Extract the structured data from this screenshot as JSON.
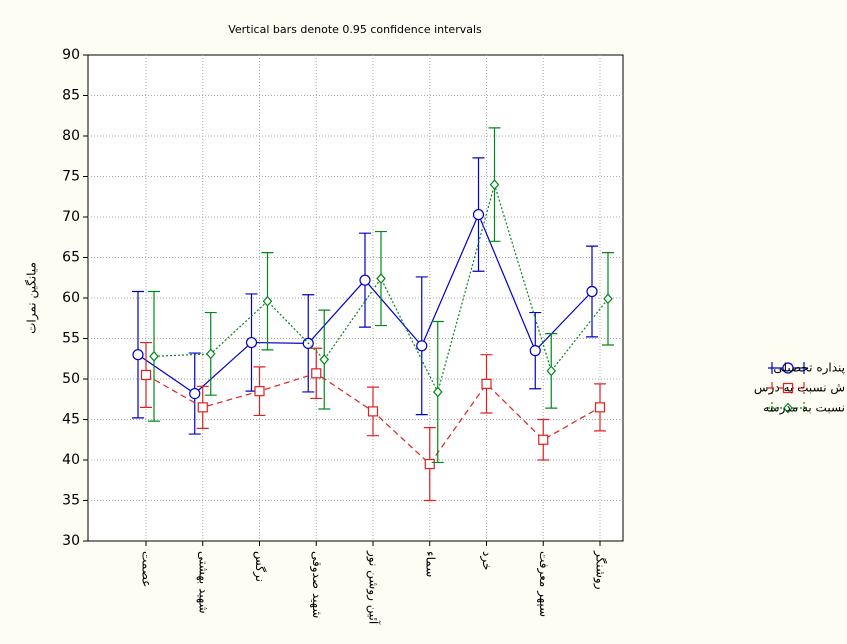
{
  "chart_data": {
    "type": "line",
    "title": "Vertical bars denote 0.95 confidence intervals",
    "y_label": "میانگین نمرات",
    "categories": [
      "عصمت",
      "شهید بهشتی",
      "نرگس",
      "شهید صدوقی",
      "آئین روشن نور",
      "سماء",
      "خرد",
      "سپهر معرفت",
      "روشنگر"
    ],
    "series": [
      {
        "name": "پنداره تحصیلی",
        "color": "#0000cc",
        "line_style": "solid",
        "marker": "circle",
        "values": [
          53,
          48.2,
          54.5,
          54.4,
          62.2,
          54.1,
          70.3,
          53.5,
          60.8
        ],
        "errors": [
          7.8,
          5,
          6,
          6,
          5.8,
          8.5,
          7,
          4.7,
          5.6
        ]
      },
      {
        "name": "ش نسبت به درس",
        "color": "#e0201f",
        "line_style": "dashed",
        "marker": "square",
        "values": [
          50.5,
          46.5,
          48.5,
          50.7,
          46,
          39.5,
          49.4,
          42.5,
          46.5
        ],
        "errors": [
          4,
          2.6,
          3,
          3.1,
          3,
          4.5,
          3.6,
          2.5,
          2.9
        ]
      },
      {
        "name": "نسبت به مدرسه",
        "color": "#00881a",
        "line_style": "dotted",
        "marker": "diamond",
        "values": [
          52.8,
          53.1,
          59.6,
          52.4,
          62.4,
          48.4,
          74,
          51,
          59.9
        ],
        "errors": [
          8,
          5.1,
          6,
          6.1,
          5.8,
          8.7,
          7,
          4.6,
          5.7
        ]
      }
    ],
    "ylim": [
      30,
      90
    ],
    "yticks": [
      30,
      35,
      40,
      45,
      50,
      55,
      60,
      65,
      70,
      75,
      80,
      85,
      90
    ],
    "grid": true
  }
}
